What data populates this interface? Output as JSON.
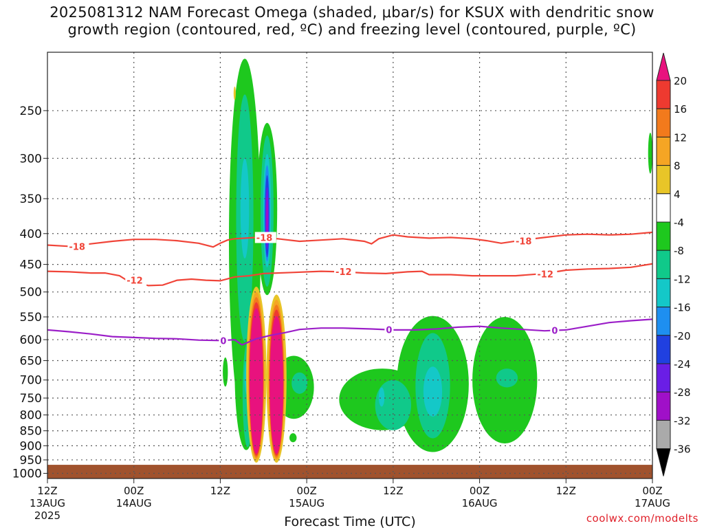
{
  "title": {
    "line1": "2025081312 NAM Forecast Omega (shaded, μbar/s) for KSUX with dendritic snow",
    "line2": "growth region (contoured, red, ºC) and freezing level (contoured, purple, ºC)"
  },
  "credit": "coolwx.com/modelts",
  "chart_data": {
    "type": "heatmap",
    "xlabel": "Forecast Time (UTC)",
    "ylabel": "",
    "x_range_hours": [
      0,
      84
    ],
    "y_range_hpa": [
      1020,
      200
    ],
    "y_scale": "log-pressure",
    "grid": true,
    "yticks": [
      250,
      300,
      350,
      400,
      450,
      500,
      550,
      600,
      650,
      700,
      750,
      800,
      850,
      900,
      950,
      1000
    ],
    "xticks": [
      {
        "hour": 0,
        "lines": [
          "12Z",
          "13AUG",
          "2025"
        ]
      },
      {
        "hour": 12,
        "lines": [
          "00Z",
          "14AUG"
        ]
      },
      {
        "hour": 24,
        "lines": [
          "12Z"
        ]
      },
      {
        "hour": 36,
        "lines": [
          "00Z",
          "15AUG"
        ]
      },
      {
        "hour": 48,
        "lines": [
          "12Z"
        ]
      },
      {
        "hour": 60,
        "lines": [
          "00Z",
          "16AUG"
        ]
      },
      {
        "hour": 72,
        "lines": [
          "12Z"
        ]
      },
      {
        "hour": 84,
        "lines": [
          "00Z",
          "17AUG"
        ]
      }
    ],
    "colorbar": {
      "labels": [
        "20",
        "16",
        "12",
        "8",
        "4",
        "-4",
        "-8",
        "-12",
        "-16",
        "-20",
        "-24",
        "-28",
        "-32",
        "-36"
      ],
      "bins": [
        {
          "range": ">20",
          "color": "#e8127e"
        },
        {
          "range": "16 to 20",
          "color": "#ee3a30"
        },
        {
          "range": "12 to 16",
          "color": "#f27a1c"
        },
        {
          "range": "8 to 12",
          "color": "#f5a524"
        },
        {
          "range": "4 to 8",
          "color": "#e8c528"
        },
        {
          "range": "-4 to 4",
          "color": "#ffffff"
        },
        {
          "range": "-8 to -4",
          "color": "#1ec81e"
        },
        {
          "range": "-12 to -8",
          "color": "#10c98a"
        },
        {
          "range": "-16 to -12",
          "color": "#14c8c8"
        },
        {
          "range": "-20 to -16",
          "color": "#1e8ff0"
        },
        {
          "range": "-24 to -20",
          "color": "#2040e0"
        },
        {
          "range": "-28 to -24",
          "color": "#6a1ee6"
        },
        {
          "range": "-32 to -28",
          "color": "#a010c8"
        },
        {
          "range": "-36 to -32",
          "color": "#aaaaaa"
        },
        {
          "range": "<-36",
          "color": "#000000"
        }
      ]
    },
    "ground": {
      "color": "#a0522d",
      "pressure_hpa": 968
    },
    "contours": [
      {
        "level": "-18",
        "color": "#f04438",
        "points": [
          [
            0,
            418
          ],
          [
            3,
            420
          ],
          [
            6,
            416
          ],
          [
            9,
            412
          ],
          [
            12,
            409
          ],
          [
            15,
            409
          ],
          [
            18,
            411
          ],
          [
            21,
            415
          ],
          [
            23,
            421
          ],
          [
            24,
            415
          ],
          [
            25,
            410
          ],
          [
            26,
            408
          ],
          [
            29,
            406
          ],
          [
            32,
            408
          ],
          [
            35,
            412
          ],
          [
            38,
            410
          ],
          [
            41,
            408
          ],
          [
            44,
            412
          ],
          [
            45,
            416
          ],
          [
            46,
            408
          ],
          [
            48,
            402
          ],
          [
            50,
            405
          ],
          [
            53,
            407
          ],
          [
            56,
            406
          ],
          [
            59,
            408
          ],
          [
            61,
            411
          ],
          [
            63,
            415
          ],
          [
            66,
            410
          ],
          [
            69,
            406
          ],
          [
            72,
            402
          ],
          [
            75,
            401
          ],
          [
            78,
            402
          ],
          [
            81,
            401
          ],
          [
            84,
            398
          ]
        ],
        "labels": [
          [
            3,
            "-18"
          ],
          [
            29,
            "-18"
          ],
          [
            65,
            "-18"
          ]
        ]
      },
      {
        "level": "-12",
        "color": "#f04438",
        "points": [
          [
            0,
            462
          ],
          [
            3,
            463
          ],
          [
            6,
            465
          ],
          [
            8,
            465
          ],
          [
            10,
            470
          ],
          [
            11,
            478
          ],
          [
            12,
            480
          ],
          [
            14,
            488
          ],
          [
            16,
            487
          ],
          [
            18,
            478
          ],
          [
            20,
            476
          ],
          [
            22,
            478
          ],
          [
            24,
            479
          ],
          [
            26,
            472
          ],
          [
            28,
            470
          ],
          [
            30,
            466
          ],
          [
            34,
            464
          ],
          [
            38,
            462
          ],
          [
            41,
            463
          ],
          [
            44,
            465
          ],
          [
            47,
            466
          ],
          [
            50,
            463
          ],
          [
            52,
            462
          ],
          [
            53,
            468
          ],
          [
            56,
            468
          ],
          [
            59,
            470
          ],
          [
            62,
            470
          ],
          [
            65,
            470
          ],
          [
            68,
            467
          ],
          [
            71,
            462
          ],
          [
            72,
            460
          ],
          [
            75,
            458
          ],
          [
            78,
            457
          ],
          [
            81,
            455
          ],
          [
            84,
            449
          ]
        ],
        "labels": [
          [
            11,
            "-12"
          ],
          [
            40,
            "-12"
          ],
          [
            68,
            "-12"
          ]
        ]
      },
      {
        "level": "0",
        "color": "#9b1ec8",
        "points": [
          [
            0,
            578
          ],
          [
            3,
            582
          ],
          [
            6,
            587
          ],
          [
            9,
            593
          ],
          [
            12,
            595
          ],
          [
            15,
            597
          ],
          [
            18,
            598
          ],
          [
            21,
            601
          ],
          [
            24,
            602
          ],
          [
            26,
            600
          ],
          [
            27,
            612
          ],
          [
            29,
            598
          ],
          [
            31,
            590
          ],
          [
            33,
            584
          ],
          [
            35,
            577
          ],
          [
            38,
            574
          ],
          [
            41,
            574
          ],
          [
            45,
            576
          ],
          [
            48,
            578
          ],
          [
            51,
            578
          ],
          [
            54,
            576
          ],
          [
            57,
            572
          ],
          [
            60,
            570
          ],
          [
            63,
            574
          ],
          [
            66,
            577
          ],
          [
            69,
            580
          ],
          [
            72,
            578
          ],
          [
            75,
            570
          ],
          [
            78,
            562
          ],
          [
            81,
            558
          ],
          [
            84,
            555
          ]
        ],
        "labels": [
          [
            24,
            "0"
          ],
          [
            47,
            "0"
          ],
          [
            70,
            "0"
          ]
        ]
      }
    ],
    "omega_regions": [
      {
        "bin": "-8 to -4",
        "t": 27.4,
        "bw": 2.2,
        "p1": 205,
        "p2": 825
      },
      {
        "bin": "-8 to -4",
        "t": 30.5,
        "bw": 1.4,
        "p1": 262,
        "p2": 506
      },
      {
        "bin": "-8 to -4",
        "t": 27.6,
        "bw": 1.6,
        "p1": 505,
        "p2": 915
      },
      {
        "bin": "-8 to -4",
        "t": 24.7,
        "bw": 0.35,
        "p1": 642,
        "p2": 718
      },
      {
        "bin": "-8 to -4",
        "t": 34.2,
        "bw": 2.8,
        "p1": 638,
        "p2": 812
      },
      {
        "bin": "-8 to -4",
        "t": 34.1,
        "bw": 0.5,
        "p1": 858,
        "p2": 888
      },
      {
        "bin": "-8 to -4",
        "t": 46.5,
        "bw": 6.0,
        "p1": 670,
        "p2": 848
      },
      {
        "bin": "-8 to -4",
        "t": 53.5,
        "bw": 5.0,
        "p1": 548,
        "p2": 922
      },
      {
        "bin": "-8 to -4",
        "t": 63.5,
        "bw": 4.5,
        "p1": 550,
        "p2": 892
      },
      {
        "bin": "-8 to -4",
        "t": 83.7,
        "bw": 0.3,
        "p1": 272,
        "p2": 318
      },
      {
        "bin": "-12 to -8",
        "t": 27.4,
        "bw": 1.2,
        "p1": 235,
        "p2": 605
      },
      {
        "bin": "-12 to -8",
        "t": 30.5,
        "bw": 0.9,
        "p1": 275,
        "p2": 490
      },
      {
        "bin": "-12 to -8",
        "t": 27.8,
        "bw": 0.7,
        "p1": 605,
        "p2": 905
      },
      {
        "bin": "-12 to -8",
        "t": 35.0,
        "bw": 1.1,
        "p1": 680,
        "p2": 738
      },
      {
        "bin": "-12 to -8",
        "t": 48.0,
        "bw": 2.5,
        "p1": 700,
        "p2": 848
      },
      {
        "bin": "-12 to -8",
        "t": 53.5,
        "bw": 2.4,
        "p1": 585,
        "p2": 875
      },
      {
        "bin": "-12 to -8",
        "t": 63.8,
        "bw": 1.5,
        "p1": 670,
        "p2": 720
      },
      {
        "bin": "-16 to -12",
        "t": 27.4,
        "bw": 0.6,
        "p1": 300,
        "p2": 440
      },
      {
        "bin": "-16 to -12",
        "t": 30.5,
        "bw": 0.55,
        "p1": 295,
        "p2": 455
      },
      {
        "bin": "-16 to -12",
        "t": 53.5,
        "bw": 1.3,
        "p1": 665,
        "p2": 805
      },
      {
        "bin": "-16 to -12",
        "t": 46.4,
        "bw": 0.4,
        "p1": 720,
        "p2": 775
      },
      {
        "bin": "-16 to -12",
        "t": 27.7,
        "bw": 0.35,
        "p1": 650,
        "p2": 740
      },
      {
        "bin": "-20 to -16",
        "t": 30.5,
        "bw": 0.4,
        "p1": 308,
        "p2": 445
      },
      {
        "bin": "-24 to -20",
        "t": 30.5,
        "bw": 0.3,
        "p1": 320,
        "p2": 438
      },
      {
        "bin": "-28 to -24",
        "t": 30.5,
        "bw": 0.22,
        "p1": 335,
        "p2": 425
      },
      {
        "bin": "-32 to -28",
        "t": 30.5,
        "bw": 0.14,
        "p1": 348,
        "p2": 412
      },
      {
        "bin": "4 to 8",
        "t": 29.0,
        "bw": 1.4,
        "p1": 490,
        "p2": 960
      },
      {
        "bin": "4 to 8",
        "t": 31.8,
        "bw": 1.4,
        "p1": 505,
        "p2": 960
      },
      {
        "bin": "4 to 8",
        "t": 26.0,
        "bw": 0.15,
        "p1": 228,
        "p2": 240
      },
      {
        "bin": "8 to 12",
        "t": 29.0,
        "bw": 1.15,
        "p1": 500,
        "p2": 950
      },
      {
        "bin": "8 to 12",
        "t": 31.8,
        "bw": 1.15,
        "p1": 515,
        "p2": 950
      },
      {
        "bin": "12 to 16",
        "t": 29.0,
        "bw": 1.05,
        "p1": 510,
        "p2": 942
      },
      {
        "bin": "12 to 16",
        "t": 31.8,
        "bw": 1.05,
        "p1": 525,
        "p2": 942
      },
      {
        "bin": "16 to 20",
        "t": 29.0,
        "bw": 0.98,
        "p1": 520,
        "p2": 935
      },
      {
        "bin": "16 to 20",
        "t": 31.8,
        "bw": 0.98,
        "p1": 535,
        "p2": 935
      },
      {
        "bin": ">20",
        "t": 29.0,
        "bw": 0.92,
        "p1": 532,
        "p2": 928
      },
      {
        "bin": ">20",
        "t": 31.8,
        "bw": 0.92,
        "p1": 548,
        "p2": 928
      }
    ]
  }
}
